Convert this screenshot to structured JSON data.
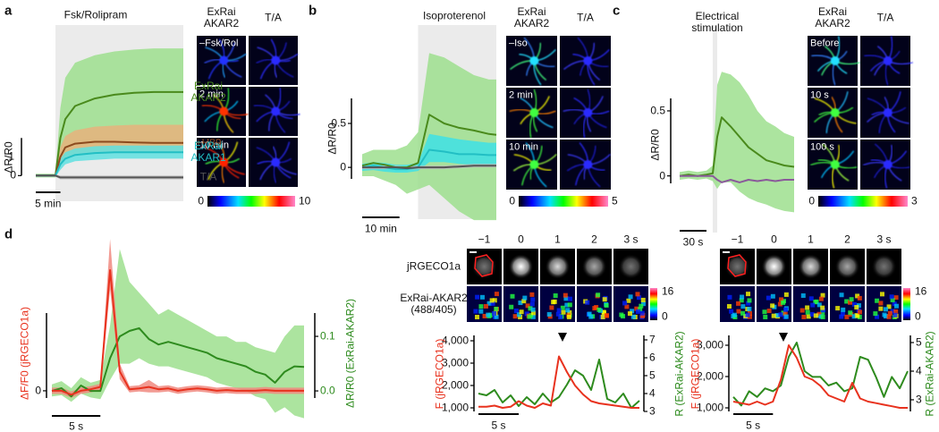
{
  "figure": {
    "panel_labels": [
      "a",
      "b",
      "c",
      "d"
    ],
    "image_panels": [
      {
        "columns": [
          "ExRai AKAR2",
          "T/A"
        ],
        "rows": [
          "–Fsk/Rol",
          "2 min",
          "10 min"
        ],
        "colorbar": [
          0,
          10
        ]
      },
      {
        "columns": [
          "ExRai AKAR2",
          "T/A"
        ],
        "rows": [
          "–Iso",
          "2 min",
          "10 min"
        ],
        "colorbar": [
          0,
          5
        ]
      },
      {
        "columns": [
          "ExRai AKAR2",
          "T/A"
        ],
        "rows": [
          "Before",
          "10 s",
          "100 s"
        ],
        "colorbar": [
          0,
          3
        ]
      },
      {
        "columns": [
          "−1",
          "0",
          "1",
          "2",
          "3 s"
        ],
        "rows": [
          "jRGECO1a",
          "ExRai-AKAR2 (488/405)"
        ],
        "colorbar": [
          0,
          16
        ]
      },
      {
        "columns": [
          "−1",
          "0",
          "1",
          "2",
          "3 s"
        ],
        "colorbar": [
          0,
          16
        ]
      }
    ]
  },
  "chart_data": [
    {
      "type": "line",
      "annotation": "Fsk/Rolipram",
      "shade": [
        4,
        30
      ],
      "ylabel": "ΔR/R0",
      "x": [
        0,
        2,
        4,
        5,
        6,
        8,
        12,
        16,
        20,
        24,
        28,
        30
      ],
      "xlim": [
        0,
        30
      ],
      "ylim": [
        -0.8,
        4.0
      ],
      "yticks": [
        0
      ],
      "yscale": 1,
      "xscale": {
        "value": 5,
        "label": "5 min"
      },
      "series": [
        {
          "name": "ExRai AKAR2",
          "color": "#4a8a1c",
          "band_color": "#9ddf8e",
          "values": [
            0,
            0,
            0,
            1.0,
            1.5,
            1.85,
            2.05,
            2.15,
            2.2,
            2.22,
            2.22,
            2.22
          ],
          "lower": [
            -0.05,
            -0.05,
            -0.05,
            0.3,
            0.5,
            0.6,
            0.65,
            0.7,
            0.7,
            0.72,
            0.72,
            0.72
          ],
          "upper": [
            0.05,
            0.05,
            0.05,
            1.8,
            2.6,
            3.0,
            3.2,
            3.3,
            3.35,
            3.38,
            3.38,
            3.38
          ]
        },
        {
          "name": "+H89",
          "color": "#8b4a1e",
          "band_color": "#e8b27c",
          "values": [
            0,
            0,
            0,
            0.5,
            0.75,
            0.85,
            0.9,
            0.9,
            0.88,
            0.87,
            0.87,
            0.87
          ],
          "lower": [
            -0.03,
            -0.03,
            -0.03,
            0.3,
            0.45,
            0.55,
            0.6,
            0.6,
            0.6,
            0.6,
            0.6,
            0.6
          ],
          "upper": [
            0.03,
            0.03,
            0.03,
            0.75,
            1.05,
            1.2,
            1.3,
            1.33,
            1.35,
            1.35,
            1.35,
            1.35
          ]
        },
        {
          "name": "ExRai AKAR1",
          "color": "#22bfc4",
          "band_color": "#5fe0e0",
          "values": [
            0,
            0,
            0,
            0.3,
            0.45,
            0.55,
            0.6,
            0.62,
            0.62,
            0.62,
            0.62,
            0.62
          ],
          "lower": [
            -0.03,
            -0.03,
            -0.03,
            0.15,
            0.3,
            0.38,
            0.42,
            0.45,
            0.45,
            0.45,
            0.45,
            0.45
          ],
          "upper": [
            0.03,
            0.03,
            0.03,
            0.45,
            0.62,
            0.72,
            0.78,
            0.8,
            0.8,
            0.8,
            0.8,
            0.8
          ]
        },
        {
          "name": "T/A",
          "color": "#555555",
          "band_color": "#bbbbbb",
          "values": [
            0,
            0,
            0,
            -0.05,
            -0.05,
            -0.05,
            -0.05,
            -0.05,
            -0.05,
            -0.05,
            -0.05,
            -0.05
          ],
          "lower": [
            -0.03,
            -0.03,
            -0.03,
            -0.1,
            -0.1,
            -0.1,
            -0.1,
            -0.1,
            -0.1,
            -0.1,
            -0.1,
            -0.1
          ],
          "upper": [
            0.03,
            0.03,
            0.03,
            0,
            0,
            0,
            0,
            0,
            0,
            0,
            0,
            0
          ]
        }
      ]
    },
    {
      "type": "line",
      "annotation": "Isoproterenol",
      "shade": [
        15,
        36
      ],
      "ylabel": "ΔR/R0",
      "x": [
        0,
        3,
        6,
        9,
        12,
        15,
        18,
        22,
        26,
        30,
        34,
        36
      ],
      "xlim": [
        0,
        36
      ],
      "ylim": [
        -0.64,
        1.62
      ],
      "yticks": [
        0,
        0.5
      ],
      "xscale": {
        "value": 10,
        "label": "10 min"
      },
      "series": [
        {
          "color": "#4a8a1c",
          "band_color": "#9ddf8e",
          "values": [
            0.02,
            0.05,
            0.03,
            0,
            0,
            0.05,
            0.6,
            0.5,
            0.45,
            0.42,
            0.38,
            0.37
          ],
          "lower": [
            -0.1,
            -0.1,
            -0.15,
            -0.2,
            -0.3,
            -0.25,
            -0.2,
            -0.35,
            -0.5,
            -0.6,
            -0.6,
            -0.6
          ],
          "upper": [
            0.15,
            0.2,
            0.2,
            0.2,
            0.25,
            0.4,
            1.3,
            1.25,
            1.15,
            1.05,
            1.0,
            1.0
          ]
        },
        {
          "color": "#22bfc4",
          "band_color": "#3ee0e6",
          "values": [
            0,
            0.02,
            0,
            -0.02,
            -0.02,
            0,
            0.2,
            0.18,
            0.15,
            0.15,
            0.14,
            0.14
          ],
          "lower": [
            -0.04,
            -0.03,
            -0.05,
            -0.06,
            -0.06,
            -0.04,
            0.06,
            0.06,
            0.04,
            0.03,
            0.03,
            0.03
          ],
          "upper": [
            0.04,
            0.06,
            0.05,
            0.03,
            0.03,
            0.05,
            0.38,
            0.35,
            0.32,
            0.3,
            0.28,
            0.28
          ]
        },
        {
          "color": "#555555",
          "band_color": "#bbbbbb",
          "values": [
            0,
            0,
            0,
            0,
            -0.01,
            0,
            0,
            0,
            0.01,
            0.02,
            0.02,
            0.02
          ],
          "lower": [
            -0.02,
            -0.02,
            -0.02,
            -0.02,
            -0.03,
            -0.02,
            -0.02,
            -0.02,
            -0.01,
            0,
            0,
            0
          ],
          "upper": [
            0.02,
            0.02,
            0.02,
            0.02,
            0.01,
            0.02,
            0.02,
            0.02,
            0.03,
            0.04,
            0.04,
            0.04
          ]
        }
      ]
    },
    {
      "type": "line",
      "annotation": "Electrical stimulation",
      "shade": [
        37,
        42
      ],
      "ylabel": "ΔR/R0",
      "x": [
        0,
        10,
        20,
        30,
        37,
        42,
        47,
        57,
        67,
        77,
        87,
        97,
        107,
        117,
        128
      ],
      "xlim": [
        0,
        128
      ],
      "ylim": [
        -0.47,
        1.16
      ],
      "yticks": [
        0,
        0.5
      ],
      "xscale": {
        "value": 30,
        "label": "30 s"
      },
      "series": [
        {
          "color": "#4a8a1c",
          "band_color": "#9ddf8e",
          "values": [
            0,
            0.01,
            0,
            0.01,
            0.02,
            0.3,
            0.45,
            0.38,
            0.3,
            0.22,
            0.17,
            0.12,
            0.1,
            0.08,
            0.07
          ],
          "lower": [
            -0.03,
            -0.02,
            -0.03,
            -0.02,
            -0.04,
            -0.1,
            -0.05,
            -0.05,
            -0.12,
            -0.17,
            -0.2,
            -0.22,
            -0.25,
            -0.27,
            -0.28
          ],
          "upper": [
            0.03,
            0.04,
            0.03,
            0.04,
            0.08,
            0.7,
            0.8,
            0.78,
            0.72,
            0.62,
            0.5,
            0.42,
            0.38,
            0.33,
            0.3
          ]
        },
        {
          "color": "#8a5a9a",
          "values": [
            0,
            0,
            0,
            0,
            0,
            -0.03,
            -0.05,
            -0.03,
            -0.05,
            -0.03,
            -0.04,
            -0.03,
            -0.04,
            -0.03,
            -0.03
          ]
        }
      ]
    },
    {
      "type": "line",
      "ylabel": "ΔF/F0 (jRGECO1a)",
      "y2label": "ΔR/R0 (ExRai-AKAR2)",
      "x": [
        0,
        1,
        2,
        3,
        4,
        5,
        6,
        7,
        8,
        9,
        10,
        11,
        12,
        13,
        14,
        15,
        16,
        17,
        18,
        19,
        20,
        21,
        22,
        23,
        24,
        25,
        26
      ],
      "xlim": [
        0,
        26
      ],
      "ylim": [
        -0.38,
        2.01
      ],
      "y2lim": [
        -0.054,
        0.287
      ],
      "yticks": [
        0
      ],
      "y2ticks": [
        {
          "value": 0,
          "label": "0.0"
        },
        0.1
      ],
      "xscale": {
        "value": 5,
        "label": "5 s"
      },
      "series": [
        {
          "color": "#2e8b1e",
          "band_color": "#9ddf8e",
          "axis": "y2",
          "values": [
            0,
            0.005,
            -0.01,
            0.01,
            0,
            0,
            0.06,
            0.1,
            0.11,
            0.115,
            0.095,
            0.085,
            0.09,
            0.085,
            0.08,
            0.075,
            0.07,
            0.06,
            0.055,
            0.05,
            0.045,
            0.035,
            0.03,
            0.015,
            0.035,
            0.045,
            0.044
          ],
          "lower": [
            -0.01,
            -0.008,
            -0.02,
            -0.005,
            -0.012,
            -0.015,
            0.02,
            0.05,
            0.05,
            0.06,
            0.05,
            0.045,
            0.045,
            0.04,
            0.035,
            0.03,
            0.025,
            0.015,
            0.01,
            0.005,
            0,
            -0.01,
            -0.015,
            -0.04,
            -0.03,
            -0.045,
            -0.05
          ],
          "upper": [
            0.012,
            0.018,
            0.005,
            0.025,
            0.015,
            0.02,
            0.12,
            0.26,
            0.2,
            0.18,
            0.16,
            0.14,
            0.15,
            0.14,
            0.13,
            0.12,
            0.11,
            0.1,
            0.1,
            0.09,
            0.09,
            0.08,
            0.075,
            0.07,
            0.1,
            0.12,
            0.12
          ]
        },
        {
          "color": "#e8321e",
          "band_color": "#f08a80",
          "values": [
            0,
            0,
            -0.05,
            0,
            0.02,
            0.05,
            1.55,
            0.25,
            0.02,
            0.03,
            0.05,
            0.02,
            0.03,
            0,
            0.02,
            0.03,
            0.02,
            0,
            0.01,
            0,
            0,
            0,
            0.01,
            0,
            0,
            0,
            0
          ],
          "lower": [
            -0.04,
            -0.04,
            -0.09,
            -0.04,
            -0.02,
            0.01,
            1.3,
            0.15,
            -0.02,
            -0.01,
            -0.02,
            -0.02,
            -0.01,
            -0.04,
            -0.02,
            -0.01,
            -0.02,
            -0.04,
            -0.03,
            -0.04,
            -0.04,
            -0.04,
            -0.03,
            -0.04,
            -0.04,
            -0.04,
            -0.04
          ],
          "upper": [
            0.04,
            0.04,
            -0.01,
            0.04,
            0.06,
            0.09,
            1.95,
            0.35,
            0.06,
            0.07,
            0.14,
            0.06,
            0.07,
            0.04,
            0.06,
            0.07,
            0.06,
            0.04,
            0.05,
            0.04,
            0.04,
            0.04,
            0.05,
            0.04,
            0.04,
            0.04,
            0.04
          ]
        }
      ]
    },
    {
      "type": "line",
      "ylabel": "F (jRGECO1a)",
      "y2label": "R (ExRai-AKAR2)",
      "x": [
        0,
        1,
        2,
        3,
        4,
        5,
        6,
        7,
        8,
        9,
        10,
        11,
        12,
        13,
        14,
        15,
        16,
        17,
        18,
        19,
        20
      ],
      "xlim": [
        0,
        20
      ],
      "ylim": [
        640,
        4240
      ],
      "y2lim": [
        2.75,
        7.25
      ],
      "yticks": [
        {
          "value": 1000,
          "label": "1,000"
        },
        {
          "value": 2000,
          "label": "2,000"
        },
        {
          "value": 3000,
          "label": "3,000"
        },
        {
          "value": 4000,
          "label": "4,000"
        }
      ],
      "y2ticks": [
        3,
        4,
        5,
        6,
        7
      ],
      "xscale": {
        "value": 5,
        "label": "5 s"
      },
      "series": [
        {
          "color": "#2e8b1e",
          "axis": "y2",
          "values": [
            4,
            3.9,
            4.2,
            3.5,
            3.9,
            3.3,
            3.8,
            3.4,
            4.0,
            3.5,
            3.8,
            4.5,
            5.3,
            5.0,
            4.2,
            5.9,
            3.7,
            3.5,
            4.0,
            3.2,
            3.6
          ]
        },
        {
          "color": "#e8321e",
          "values": [
            1050,
            1050,
            1100,
            1000,
            1050,
            1300,
            1100,
            1000,
            1200,
            1100,
            3300,
            2600,
            2000,
            1600,
            1300,
            1200,
            1150,
            1100,
            1050,
            1000,
            1000
          ]
        }
      ]
    },
    {
      "type": "line",
      "ylabel": "F (jRGECO1a)",
      "y2label": "R (ExRai-AKAR2)",
      "x": [
        0,
        1,
        2,
        3,
        4,
        5,
        6,
        7,
        8,
        9,
        10,
        11,
        12,
        13,
        14,
        15,
        16,
        17,
        18,
        19,
        20,
        21,
        22
      ],
      "xlim": [
        0,
        22
      ],
      "ylim": [
        600,
        3314
      ],
      "y2lim": [
        2.28,
        5.25
      ],
      "yticks": [
        {
          "value": 1000,
          "label": "1,000"
        },
        {
          "value": 2000,
          "label": "2,000"
        },
        {
          "value": 3000,
          "label": "3,000"
        }
      ],
      "y2ticks": [
        3,
        4,
        5
      ],
      "xscale": {
        "value": 5,
        "label": "5 s"
      },
      "series": [
        {
          "color": "#2e8b1e",
          "axis": "y2",
          "values": [
            3.1,
            2.8,
            3.3,
            3.1,
            3.4,
            3.3,
            3.5,
            4.5,
            5.0,
            4.0,
            3.8,
            3.8,
            3.5,
            3.6,
            3.3,
            3.4,
            4.5,
            4.4,
            3.8,
            3.1,
            3.8,
            3.4,
            4.0
          ]
        },
        {
          "color": "#e8321e",
          "values": [
            1200,
            1150,
            1100,
            1200,
            1100,
            1200,
            1900,
            3000,
            2600,
            2000,
            1900,
            1700,
            1400,
            1300,
            1200,
            1800,
            1300,
            1200,
            1150,
            1100,
            1050,
            1000,
            1000
          ]
        }
      ]
    }
  ]
}
